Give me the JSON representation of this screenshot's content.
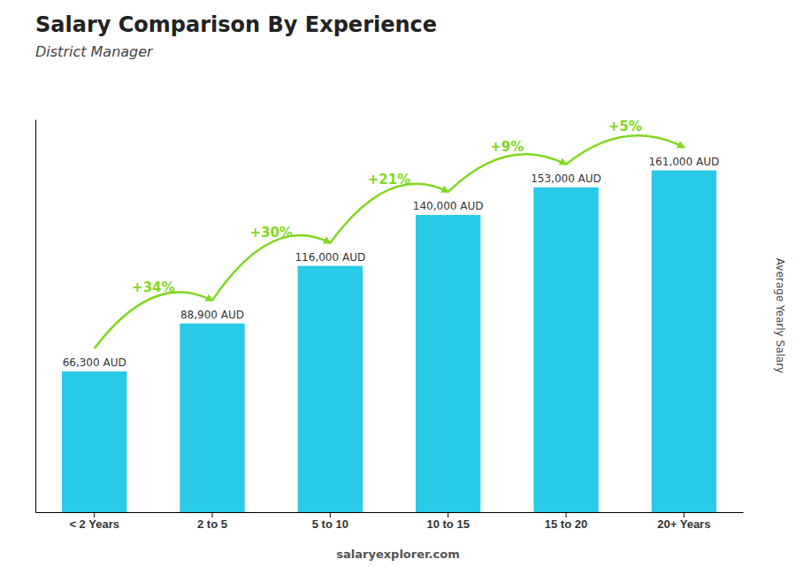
{
  "chart_data": {
    "type": "bar",
    "title": "Salary Comparison By Experience",
    "subtitle": "District Manager",
    "categories": [
      "< 2 Years",
      "2 to 5",
      "5 to 10",
      "10 to 15",
      "15 to 20",
      "20+ Years"
    ],
    "values": [
      66300,
      88900,
      116000,
      140000,
      153000,
      161000
    ],
    "value_labels": [
      "66,300 AUD",
      "88,900 AUD",
      "116,000 AUD",
      "140,000 AUD",
      "153,000 AUD",
      "161,000 AUD"
    ],
    "data_labels": true,
    "color": "#29C9E8",
    "ylim": [
      0,
      185000
    ],
    "tick_labels": "x",
    "y_label": "Average Yearly Salary",
    "annotations": [
      {
        "text": "+34%",
        "color": "#7FD820"
      },
      {
        "text": "+30%",
        "color": "#7FD820"
      },
      {
        "text": "+21%",
        "color": "#7FD820"
      },
      {
        "text": "+9%",
        "color": "#7FD820"
      },
      {
        "text": "+5%",
        "color": "#7FD820"
      }
    ],
    "footer": "salaryexplorer.com"
  }
}
